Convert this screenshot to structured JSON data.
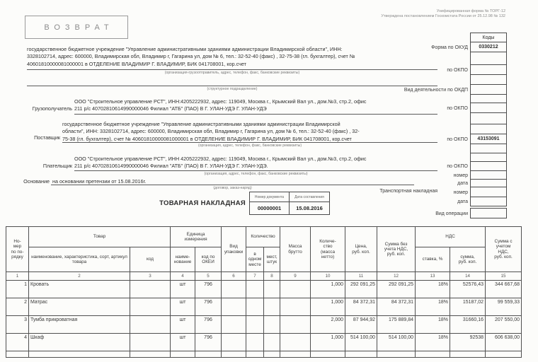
{
  "meta": {
    "form_note_line1": "Унифицированная форма № ТОРГ-12",
    "form_note_line2": "Утверждена постановлением Госкомстата России от 25.12.98 № 132"
  },
  "stamp": {
    "text": "ВОЗВРАТ"
  },
  "parties": {
    "shipper": {
      "lines": [
        "государственное бюджетное учреждение \"Управление административными зданиями администрации Владимирской области\", ИНН:",
        "3328102714, адрес: 600000, Владимирская обл, Владимир г, Гагарина ул, дом № 6, тел.: 32-52-40 (факс) , 32-75-38 (гл. бухгалтер), счет №",
        "40601810000081000001 в ОТДЕЛЕНИЕ ВЛАДИМИР Г. ВЛАДИМИР, БИК 041708001, кор.счет"
      ],
      "caption": "(организация-грузоотправитель, адрес, телефон, факс, банковские реквизиты)"
    },
    "structural": {
      "caption": "(структурное подразделение)"
    },
    "consignee": {
      "label": "Грузополучатель",
      "lines": [
        "ООО \"Строительное управление РСТ\", ИНН:4205222932, адрес: 119049, Москва г., Крымский  Вал ул., дом.№3, стр.2, офис",
        "211 р/с 40702810614990000046 Филиал \"АТБ\" (ПАО) В Г. УЛАН-УДЭ Г. УЛАН-УДЭ"
      ]
    },
    "supplier": {
      "label": "Поставщик",
      "lines": [
        "государственное бюджетное учреждение \"Управление административными зданиями администрации Владимирской",
        "области\", ИНН: 3328102714, адрес: 600000, Владимирская обл, Владимир г, Гагарина ул, дом № 6, тел.: 32-52-40 (факс) , 32-",
        "75-38 (гл. бухгалтер), счет № 40601810000081000001 в ОТДЕЛЕНИЕ ВЛАДИМИР Г. ВЛАДИМИР, БИК 041708001, кор.счет"
      ],
      "caption": "(организация, адрес, телефон, факс, банковские реквизиты)"
    },
    "payer": {
      "label": "Плательщик",
      "lines": [
        "ООО \"Строительное управление РСТ\", ИНН 4205222932, адрес: 119049, Москва г., Крымский  Вал ул., дом.№3, стр.2, офис",
        "211 р/с 40702810614990000046 Филиал \"АТБ\" (ПАО) В Г. УЛАН-УДЭ Г. УЛАН-УДЭ."
      ],
      "caption": "(организация, адрес, телефон, факс, банковские реквизиты)"
    },
    "basis": {
      "label": "Основание",
      "text": "на основании претензии от 15.08.2016г.",
      "caption": "(договор, заказ-наряд)"
    }
  },
  "document": {
    "title": "ТОВАРНАЯ НАКЛАДНАЯ",
    "number_label": "Номер документа",
    "date_label": "Дата составления",
    "number": "00000001",
    "date": "15.08.2016",
    "transport_label": "Транспортная накладная",
    "operation_label": "Вид операции"
  },
  "codes_panel": {
    "rows": [
      {
        "label": "",
        "value": "Коды",
        "header": true
      },
      {
        "label": "Форма по ОКУД",
        "value": "0330212",
        "thick": true
      },
      {
        "label": "",
        "value": ""
      },
      {
        "label": "по ОКПО",
        "value": ""
      },
      {
        "label": "",
        "value": ""
      },
      {
        "label": "Вид деятельности по ОКДП",
        "value": ""
      },
      {
        "label": "",
        "value": ""
      },
      {
        "label": "по ОКПО",
        "value": ""
      },
      {
        "label": "",
        "value": ""
      },
      {
        "label": "",
        "value": ""
      },
      {
        "label": "по ОКПО",
        "value": "43153091"
      },
      {
        "label": "",
        "value": ""
      },
      {
        "label": "",
        "value": ""
      },
      {
        "label": "по ОКПО",
        "value": ""
      },
      {
        "label": "номер",
        "value": ""
      },
      {
        "label": "дата",
        "value": ""
      },
      {
        "label": "номер",
        "value": ""
      },
      {
        "label": "дата",
        "value": ""
      },
      {
        "label": "Вид операции",
        "value": "",
        "gap": true,
        "thick": true
      }
    ]
  },
  "table": {
    "headers": {
      "num": "Но-\nмер\nпо по-\nрядку",
      "tovar": "Товар",
      "name": "наименование, характеристика, сорт, артикул товара",
      "code": "код",
      "unit": "Единица\nизмерения",
      "unit_name": "наиме-\nнование",
      "okei": "код по\nОКЕИ",
      "pack": "Вид\nупаковки",
      "qty": "Количество",
      "qty_one": "в\nодном\nместе",
      "qty_pcs": "мест,\nштук",
      "gross": "Масса\nбрутто",
      "net": "Количе-\nство\n(масса\nнетто)",
      "price": "Цена,\nруб. коп.",
      "sum_wo_vat": "Сумма без\nучета НДС,\nруб. коп.",
      "vat": "НДС",
      "vat_rate": "ставка, %",
      "vat_sum": "сумма,\nруб. коп.",
      "total": "Сумма с\nучетом\nНДС,\nруб. коп."
    },
    "col_numbers": [
      "1",
      "2",
      "3",
      "4",
      "5",
      "6",
      "7",
      "8",
      "9",
      "10",
      "11",
      "12",
      "13",
      "14",
      "15"
    ],
    "rows": [
      [
        "1",
        "Кровать",
        "",
        "шт",
        "796",
        "",
        "",
        "",
        "",
        "1,000",
        "292 091,25",
        "292 091,25",
        "18%",
        "52576,43",
        "344 667,68"
      ],
      [
        "2",
        "Матрас",
        "",
        "шт",
        "796",
        "",
        "",
        "",
        "",
        "1,000",
        "84 372,31",
        "84 372,31",
        "18%",
        "15187,02",
        "99 559,33"
      ],
      [
        "3",
        "Тумба прикроватная",
        "",
        "шт",
        "796",
        "",
        "",
        "",
        "",
        "2,000",
        "87 944,92",
        "175 889,84",
        "18%",
        "31660,16",
        "207 550,00"
      ],
      [
        "4",
        "Шкаф",
        "",
        "шт",
        "796",
        "",
        "",
        "",
        "",
        "1,000",
        "514 100,00",
        "514 100,00",
        "18%",
        "92538",
        "606 638,00"
      ]
    ]
  }
}
